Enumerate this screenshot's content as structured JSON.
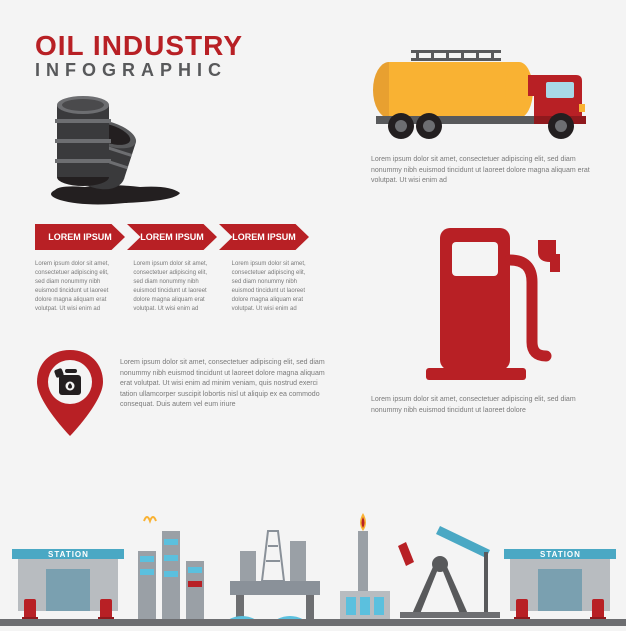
{
  "colors": {
    "red": "#b82025",
    "dark_red": "#8f191d",
    "black": "#231f20",
    "grey": "#58595b",
    "grey_light": "#7a7a7a",
    "yellow": "#f9b233",
    "orange": "#e8a030",
    "blue": "#5bc0de",
    "teal": "#4aa8c4",
    "bg": "#f4f4f4",
    "building_grey": "#b8bcc0"
  },
  "title": {
    "line1": "OIL INDUSTRY",
    "line2": "INFOGRAPHIC",
    "line1_color": "#b82025",
    "line2_color": "#58595b"
  },
  "truck_text": "Lorem ipsum dolor sit amet, consectetuer adipiscing elit, sed diam nonummy nibh euismod tincidunt ut laoreet dolore magna aliquam erat volutpat. Ut wisi enim ad",
  "pump_text": "Lorem ipsum dolor sit amet, consectetuer adipiscing elit, sed diam nonummy nibh euismod tincidunt ut laoreet dolore",
  "arrows": [
    {
      "label": "LOREM IPSUM",
      "bg": "#b82025"
    },
    {
      "label": "LOREM IPSUM",
      "bg": "#b82025"
    },
    {
      "label": "LOREM IPSUM",
      "bg": "#b82025"
    }
  ],
  "columns": [
    "Lorem ipsum dolor sit amet, consectetuer adipiscing elit, sed diam nonummy nibh euismod tincidunt ut laoreet dolore magna aliquam erat volutpat. Ut wisi enim ad",
    "Lorem ipsum dolor sit amet, consectetuer adipiscing elit, sed diam nonummy nibh euismod tincidunt ut laoreet dolore magna aliquam erat volutpat. Ut wisi enim ad",
    "Lorem ipsum dolor sit amet, consectetuer adipiscing elit, sed diam nonummy nibh euismod tincidunt ut laoreet dolore magna aliquam erat volutpat. Ut wisi enim ad"
  ],
  "pin_text": "Lorem ipsum dolor sit amet, consectetuer adipiscing elit, sed diam nonummy nibh euismod tincidunt ut laoreet dolore magna aliquam erat volutpat. Ut wisi enim ad minim veniam, quis nostrud exerci tation ullamcorper suscipit lobortis nisl ut aliquip ex ea commodo consequat. Duis autem vel eum iriure",
  "station_labels": [
    "STATION",
    "STATION"
  ]
}
